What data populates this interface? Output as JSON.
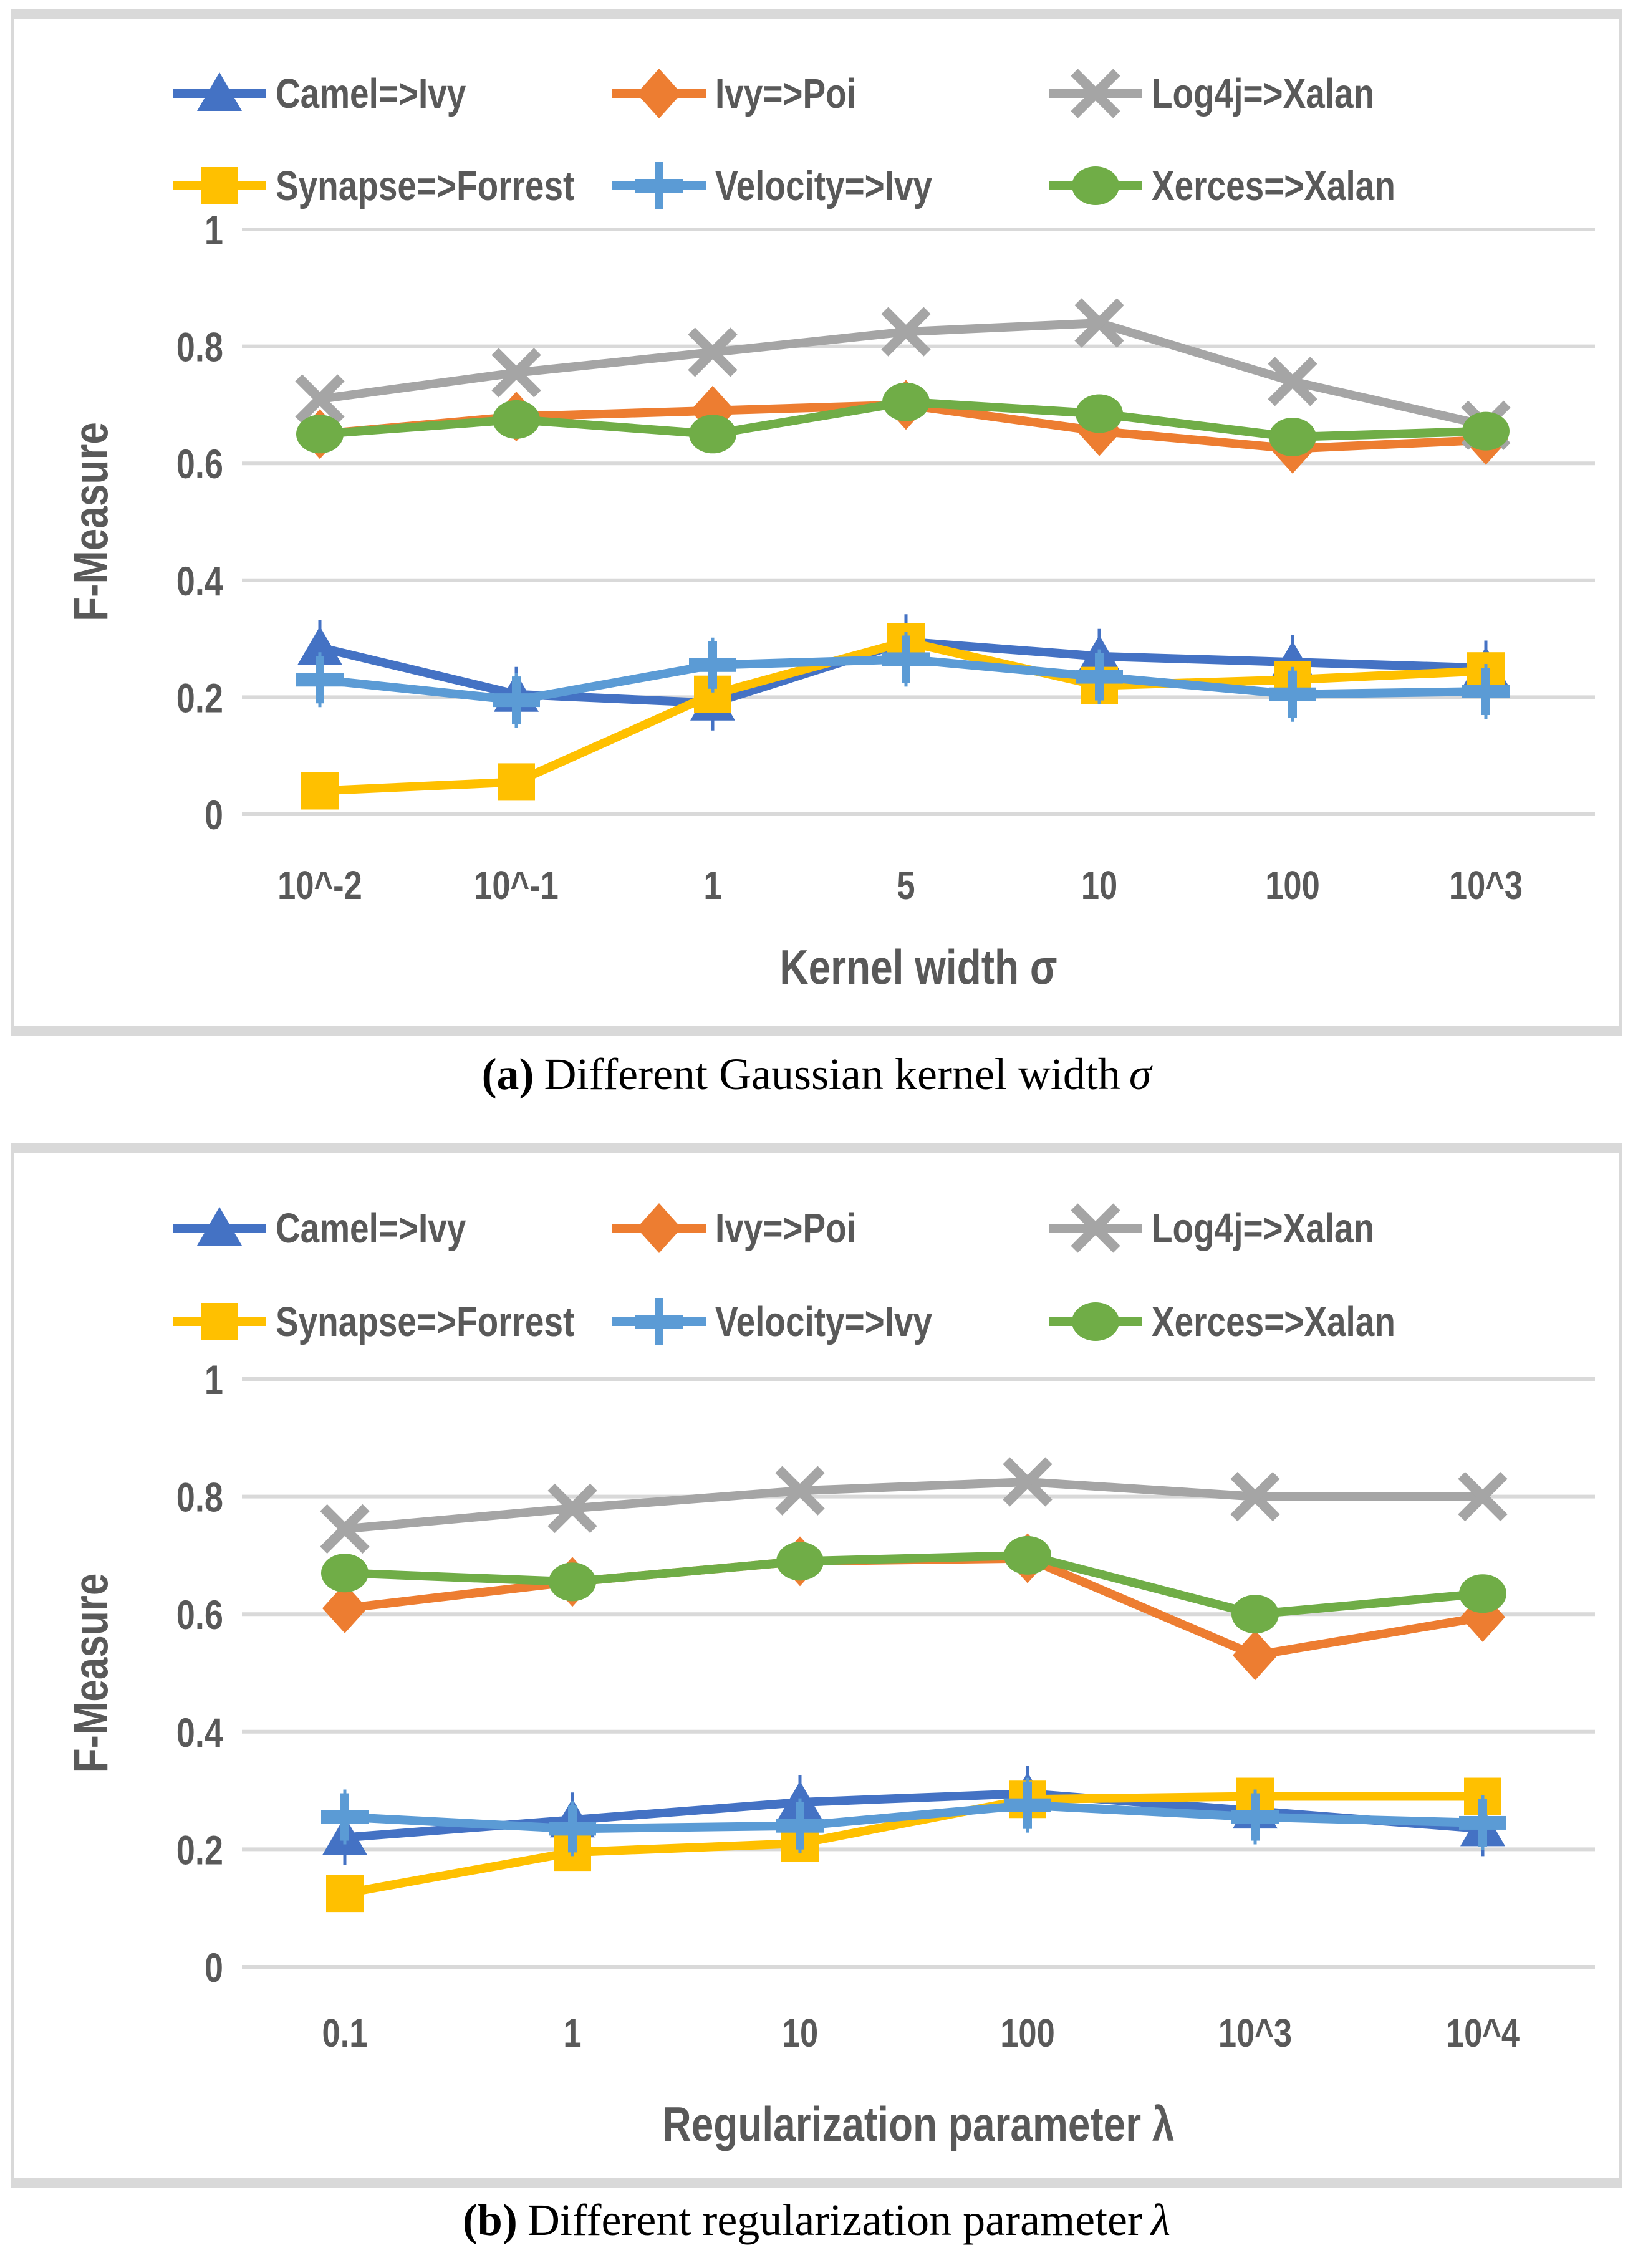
{
  "captions": {
    "a": {
      "label": "(a)",
      "text": "Different Gaussian kernel width",
      "symbol": "σ"
    },
    "b": {
      "label": "(b)",
      "text": "Different regularization parameter",
      "symbol": "λ"
    }
  },
  "chart_data": [
    {
      "type": "line",
      "title": "",
      "xlabel": "Kernel width σ",
      "ylabel": "F-Measure",
      "categories": [
        "10^-2",
        "10^-1",
        "1",
        "5",
        "10",
        "100",
        "10^3"
      ],
      "ylim": [
        0,
        1
      ],
      "y_ticks": [
        "1",
        "0.8",
        "0.6",
        "0.4",
        "0.2",
        "0"
      ],
      "grid": true,
      "legend_position": "top",
      "series": [
        {
          "name": "Camel=>Ivy",
          "color": "#4472C4",
          "marker": "triangle",
          "error_bars": true,
          "values": [
            0.285,
            0.205,
            0.19,
            0.295,
            0.27,
            0.26,
            0.25
          ]
        },
        {
          "name": "Ivy=>Poi",
          "color": "#ED7D31",
          "marker": "diamond",
          "error_bars": false,
          "values": [
            0.65,
            0.68,
            0.69,
            0.7,
            0.655,
            0.625,
            0.64
          ]
        },
        {
          "name": "Log4j=>Xalan",
          "color": "#A5A5A5",
          "marker": "x",
          "error_bars": false,
          "values": [
            0.71,
            0.755,
            0.79,
            0.825,
            0.84,
            0.74,
            0.665
          ]
        },
        {
          "name": "Synapse=>Forrest",
          "color": "#FFC000",
          "marker": "square",
          "error_bars": false,
          "values": [
            0.04,
            0.055,
            0.205,
            0.295,
            0.22,
            0.23,
            0.245
          ]
        },
        {
          "name": "Velocity=>Ivy",
          "color": "#5B9BD5",
          "marker": "plus",
          "error_bars": true,
          "values": [
            0.23,
            0.195,
            0.255,
            0.265,
            0.235,
            0.205,
            0.21
          ]
        },
        {
          "name": "Xerces=>Xalan",
          "color": "#70AD47",
          "marker": "circle",
          "error_bars": false,
          "values": [
            0.65,
            0.675,
            0.65,
            0.705,
            0.685,
            0.645,
            0.655
          ]
        }
      ]
    },
    {
      "type": "line",
      "title": "",
      "xlabel": "Regularization parameter λ",
      "ylabel": "F-Measure",
      "categories": [
        "0.1",
        "1",
        "10",
        "100",
        "10^3",
        "10^4"
      ],
      "ylim": [
        0,
        1
      ],
      "y_ticks": [
        "1",
        "0.8",
        "0.6",
        "0.4",
        "0.2",
        "0"
      ],
      "grid": true,
      "legend_position": "top",
      "series": [
        {
          "name": "Camel=>Ivy",
          "color": "#4472C4",
          "marker": "triangle",
          "error_bars": true,
          "values": [
            0.22,
            0.25,
            0.28,
            0.295,
            0.265,
            0.235
          ]
        },
        {
          "name": "Ivy=>Poi",
          "color": "#ED7D31",
          "marker": "diamond",
          "error_bars": false,
          "values": [
            0.61,
            0.655,
            0.69,
            0.695,
            0.53,
            0.595
          ]
        },
        {
          "name": "Log4j=>Xalan",
          "color": "#A5A5A5",
          "marker": "x",
          "error_bars": false,
          "values": [
            0.745,
            0.78,
            0.81,
            0.825,
            0.8,
            0.8
          ]
        },
        {
          "name": "Synapse=>Forrest",
          "color": "#FFC000",
          "marker": "square",
          "error_bars": false,
          "values": [
            0.125,
            0.195,
            0.21,
            0.285,
            0.29,
            0.29
          ]
        },
        {
          "name": "Velocity=>Ivy",
          "color": "#5B9BD5",
          "marker": "plus",
          "error_bars": true,
          "values": [
            0.255,
            0.235,
            0.24,
            0.275,
            0.255,
            0.245
          ]
        },
        {
          "name": "Xerces=>Xalan",
          "color": "#70AD47",
          "marker": "circle",
          "error_bars": false,
          "values": [
            0.67,
            0.655,
            0.69,
            0.7,
            0.6,
            0.635
          ]
        }
      ]
    }
  ],
  "style": {
    "axis_text_color": "#595959",
    "gridline_color": "#D9D9D9"
  }
}
